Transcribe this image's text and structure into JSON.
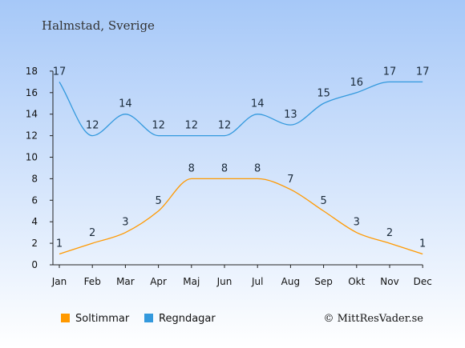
{
  "header": {
    "title": "Halmstad, Sverige"
  },
  "credit": "© MittResVader.se",
  "colors": {
    "sun": "#ff9900",
    "rain": "#3399dd",
    "bg_top": "#a6c8f8",
    "bg_bottom": "#ffffff"
  },
  "chart_data": {
    "type": "line",
    "title": "Halmstad, Sverige",
    "categories": [
      "Jan",
      "Feb",
      "Mar",
      "Apr",
      "Maj",
      "Jun",
      "Jul",
      "Aug",
      "Sep",
      "Okt",
      "Nov",
      "Dec"
    ],
    "series": [
      {
        "name": "Soltimmar",
        "color": "#ff9900",
        "values": [
          1,
          2,
          3,
          5,
          8,
          8,
          8,
          7,
          5,
          3,
          2,
          1
        ]
      },
      {
        "name": "Regndagar",
        "color": "#3399dd",
        "values": [
          17,
          12,
          14,
          12,
          12,
          12,
          14,
          13,
          15,
          16,
          17,
          17
        ]
      }
    ],
    "yticks": [
      0,
      2,
      4,
      6,
      8,
      10,
      12,
      14,
      16,
      18
    ],
    "ylim": [
      0,
      18
    ],
    "grid": false,
    "legend": "bottom-left"
  }
}
